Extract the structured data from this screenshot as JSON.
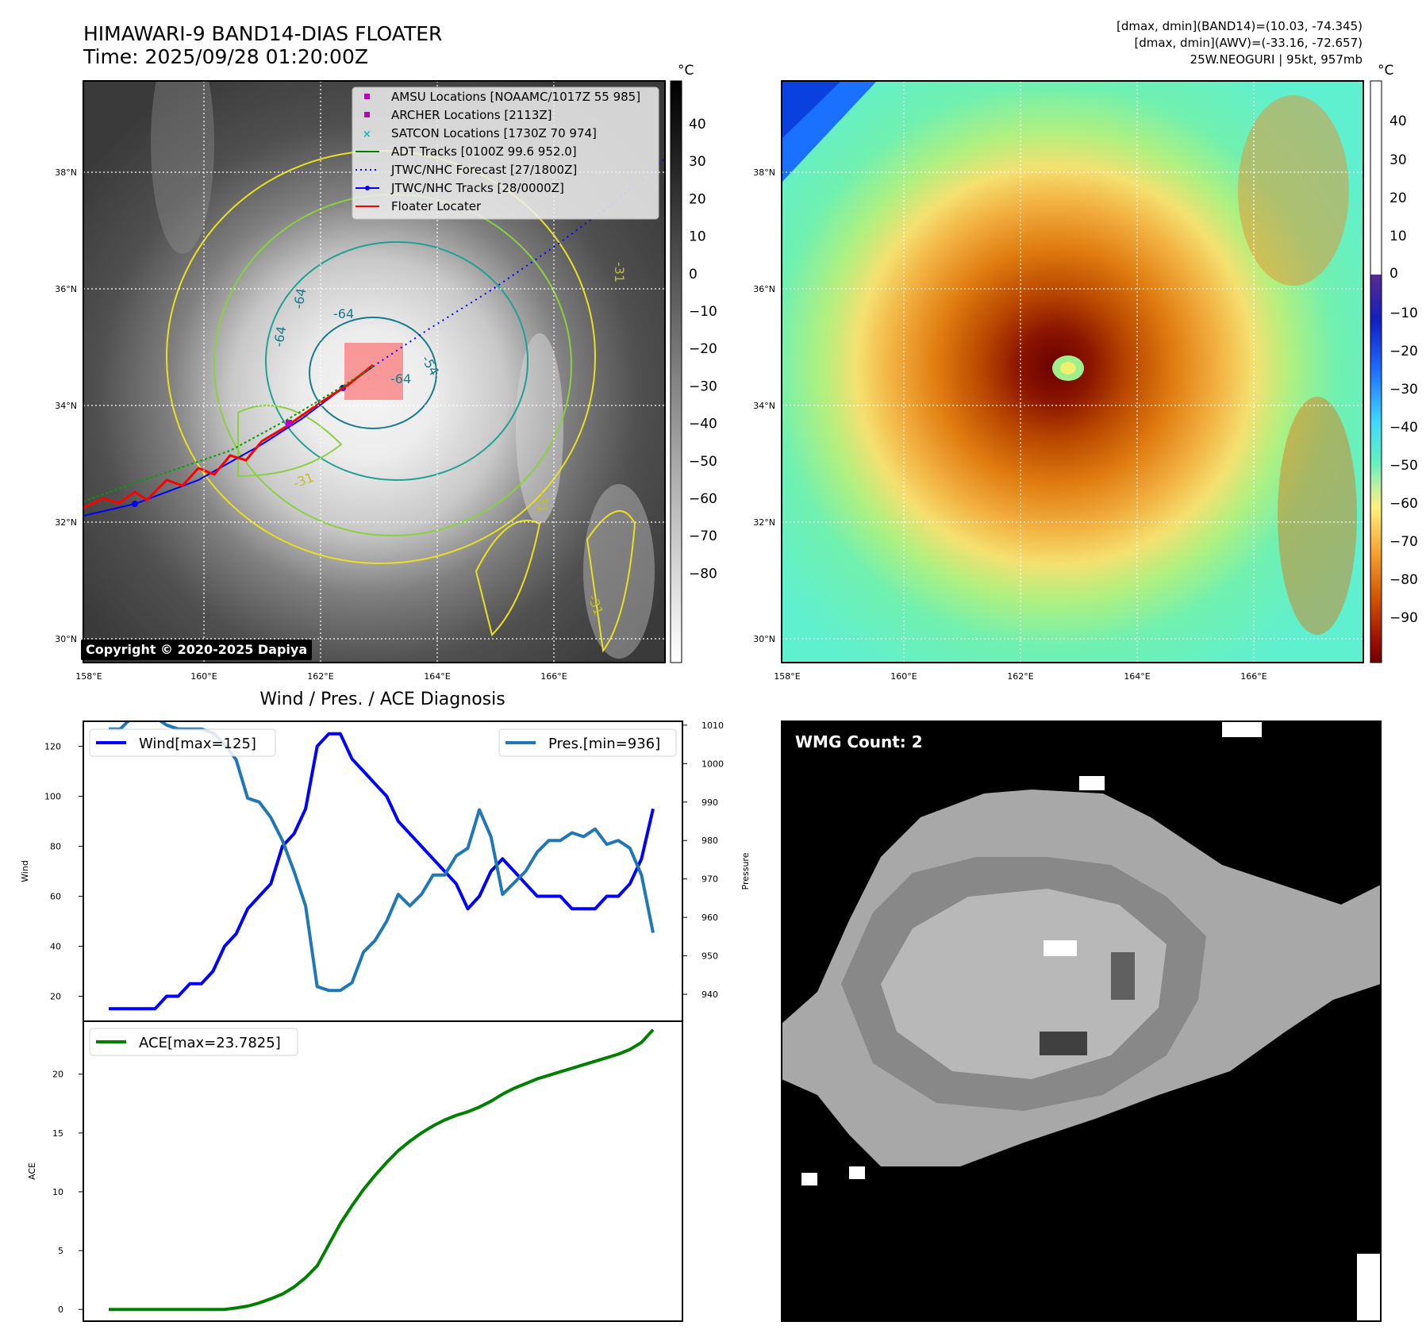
{
  "header": {
    "title_line1": "HIMAWARI-9 BAND14-DIAS FLOATER",
    "title_line2": "Time: 2025/09/28 01:20:00Z",
    "info_line1": "[dmax, dmin](BAND14)=(10.03, -74.345)",
    "info_line2": "[dmax, dmin](AWV)=(-33.16, -72.657)",
    "info_line3": "25W.NEOGURI | 95kt, 957mb"
  },
  "map": {
    "lon_ticks": [
      "158°E",
      "160°E",
      "162°E",
      "164°E",
      "166°E"
    ],
    "lat_ticks": [
      "38°N",
      "36°N",
      "34°N",
      "32°N",
      "30°N"
    ],
    "copyright": "Copyright © 2020-2025 Dapiya",
    "contour_labels": [
      "-64",
      "-64",
      "-64",
      "-64",
      "-54",
      "-31",
      "-31",
      "-31",
      "-31"
    ],
    "legend": [
      {
        "label": "AMSU Locations [NOAAMC/1017Z 55 985]",
        "color": "#c000c0",
        "marker": "square"
      },
      {
        "label": "ARCHER Locations [2113Z]",
        "color": "#c000c0",
        "marker": "square"
      },
      {
        "label": "SATCON Locations [1730Z 70 974]",
        "color": "#00bfbf",
        "marker": "x"
      },
      {
        "label": "ADT Tracks [0100Z 99.6 952.0]",
        "color": "#008000",
        "marker": "line"
      },
      {
        "label": "JTWC/NHC Forecast [27/1800Z]",
        "color": "#0000ff",
        "marker": "dotted"
      },
      {
        "label": "JTWC/NHC Tracks [28/0000Z]",
        "color": "#0000ff",
        "marker": "line-dot"
      },
      {
        "label": "Floater Locater",
        "color": "#ff0000",
        "marker": "line"
      }
    ],
    "colorbar_unit": "°C",
    "colorbar_ticks": [
      "40",
      "30",
      "20",
      "10",
      "0",
      "−10",
      "−20",
      "−30",
      "−40",
      "−50",
      "−60",
      "−70",
      "−80"
    ],
    "colorbar2_unit": "°C",
    "colorbar2_ticks": [
      "40",
      "30",
      "20",
      "10",
      "0",
      "−10",
      "−20",
      "−30",
      "−40",
      "−50",
      "−60",
      "−70",
      "−80",
      "−90"
    ]
  },
  "chart_data": [
    {
      "type": "line",
      "title": "Wind / Pres. / ACE Diagnosis",
      "ylabel": "Wind",
      "ylabel_right": "Pressure",
      "ylim": [
        10,
        130
      ],
      "ylim_right": [
        933,
        1011
      ],
      "yticks": [
        "120",
        "100",
        "80",
        "60",
        "40",
        "20"
      ],
      "yticks_right": [
        "1010",
        "1000",
        "990",
        "980",
        "970",
        "960",
        "950",
        "940"
      ],
      "x": [
        0,
        1,
        2,
        3,
        4,
        5,
        6,
        7,
        8,
        9,
        10,
        11,
        12,
        13,
        14,
        15,
        16,
        17,
        18,
        19,
        20,
        21,
        22,
        23,
        24,
        25,
        26,
        27,
        28,
        29,
        30,
        31,
        32,
        33,
        34,
        35,
        36,
        37,
        38,
        39,
        40,
        41,
        42,
        43,
        44,
        45,
        46,
        47
      ],
      "series": [
        {
          "name": "Wind[max=125]",
          "color": "#0000ff",
          "values": [
            15,
            15,
            15,
            15,
            15,
            20,
            20,
            25,
            25,
            30,
            40,
            45,
            55,
            60,
            65,
            80,
            85,
            95,
            120,
            125,
            125,
            115,
            110,
            105,
            100,
            90,
            85,
            80,
            75,
            70,
            65,
            55,
            60,
            70,
            75,
            70,
            65,
            60,
            60,
            60,
            55,
            55,
            55,
            60,
            60,
            65,
            75,
            95
          ]
        },
        {
          "name": "Pres.[min=936]",
          "color": "#1f77b4",
          "values": [
            1009,
            1009,
            1012,
            1012,
            1012,
            1010,
            1009,
            1009,
            1009,
            1008,
            1005,
            1001,
            991,
            990,
            986,
            980,
            972,
            963,
            942,
            941,
            941,
            943,
            951,
            954,
            959,
            966,
            963,
            966,
            971,
            971,
            976,
            978,
            988,
            981,
            966,
            969,
            972,
            977,
            980,
            980,
            982,
            981,
            983,
            979,
            980,
            978,
            971,
            956
          ]
        }
      ]
    },
    {
      "type": "line",
      "ylabel": "ACE",
      "ylim": [
        -1,
        24.5
      ],
      "yticks": [
        "20",
        "15",
        "10",
        "5",
        "0"
      ],
      "x": [
        0,
        1,
        2,
        3,
        4,
        5,
        6,
        7,
        8,
        9,
        10,
        11,
        12,
        13,
        14,
        15,
        16,
        17,
        18,
        19,
        20,
        21,
        22,
        23,
        24,
        25,
        26,
        27,
        28,
        29,
        30,
        31,
        32,
        33,
        34,
        35,
        36,
        37,
        38,
        39,
        40,
        41,
        42,
        43,
        44,
        45,
        46,
        47
      ],
      "series": [
        {
          "name": "ACE[max=23.7825]",
          "color": "#008000",
          "values": [
            0,
            0,
            0,
            0,
            0,
            0,
            0,
            0,
            0,
            0,
            0,
            0.12,
            0.28,
            0.55,
            0.9,
            1.3,
            1.9,
            2.7,
            3.7,
            5.5,
            7.3,
            8.8,
            10.2,
            11.4,
            12.5,
            13.5,
            14.3,
            15.0,
            15.6,
            16.1,
            16.5,
            16.8,
            17.2,
            17.7,
            18.3,
            18.8,
            19.2,
            19.6,
            19.9,
            20.2,
            20.5,
            20.8,
            21.1,
            21.4,
            21.7,
            22.1,
            22.7,
            23.78
          ]
        }
      ]
    }
  ],
  "wmg": {
    "label": "WMG Count: 2"
  }
}
